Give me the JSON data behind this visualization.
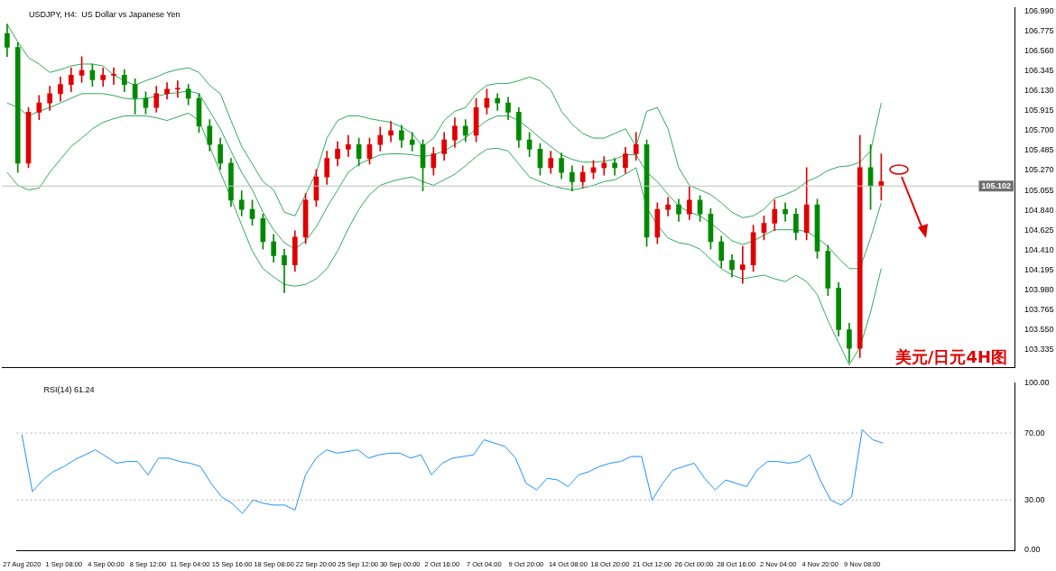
{
  "chart_data": [
    {
      "type": "candlestick",
      "title": "USDJPY, H4:  US Dollar vs Japanese Yen",
      "tick_labels": "y",
      "categories": [
        null,
        null,
        null,
        null,
        null,
        null,
        null,
        null,
        null,
        null,
        null,
        null,
        null,
        null,
        null,
        null,
        null,
        null,
        null,
        null,
        null,
        null,
        null,
        null,
        null,
        null,
        null,
        null,
        null,
        null,
        null,
        null,
        null,
        null,
        null,
        null,
        null,
        null,
        null,
        null,
        null,
        null,
        null,
        null,
        null,
        null,
        null,
        null,
        null,
        null,
        null,
        null,
        null,
        null,
        null,
        null,
        null,
        null,
        null,
        null,
        null,
        null,
        null,
        null,
        null,
        null,
        null,
        null,
        null,
        null,
        null,
        null,
        null,
        null,
        null,
        null,
        null,
        null,
        null,
        null,
        null,
        null,
        null
      ],
      "ohlc": [
        [
          106.75,
          106.85,
          106.5,
          106.6
        ],
        [
          106.6,
          106.65,
          105.25,
          105.35
        ],
        [
          105.35,
          105.95,
          105.3,
          105.9
        ],
        [
          105.9,
          106.08,
          105.82,
          106.0
        ],
        [
          106.0,
          106.18,
          105.92,
          106.1
        ],
        [
          106.1,
          106.28,
          106.02,
          106.2
        ],
        [
          106.2,
          106.38,
          106.12,
          106.3
        ],
        [
          106.3,
          106.5,
          106.22,
          106.35
        ],
        [
          106.35,
          106.42,
          106.18,
          106.25
        ],
        [
          106.25,
          106.38,
          106.18,
          106.3
        ],
        [
          106.3,
          106.38,
          106.2,
          106.3
        ],
        [
          106.3,
          106.36,
          106.12,
          106.2
        ],
        [
          106.2,
          106.26,
          105.88,
          106.05
        ],
        [
          106.05,
          106.12,
          105.88,
          105.95
        ],
        [
          105.95,
          106.18,
          105.9,
          106.1
        ],
        [
          106.1,
          106.22,
          106.04,
          106.15
        ],
        [
          106.15,
          106.24,
          106.06,
          106.15
        ],
        [
          106.15,
          106.2,
          105.98,
          106.05
        ],
        [
          106.05,
          106.1,
          105.68,
          105.75
        ],
        [
          105.75,
          105.82,
          105.48,
          105.55
        ],
        [
          105.55,
          105.62,
          105.28,
          105.35
        ],
        [
          105.35,
          105.4,
          104.88,
          104.95
        ],
        [
          104.95,
          105.05,
          104.78,
          104.85
        ],
        [
          104.85,
          104.95,
          104.68,
          104.75
        ],
        [
          104.75,
          104.8,
          104.42,
          104.5
        ],
        [
          104.5,
          104.58,
          104.28,
          104.35
        ],
        [
          104.35,
          104.42,
          103.95,
          104.25
        ],
        [
          104.25,
          104.62,
          104.18,
          104.55
        ],
        [
          104.55,
          105.02,
          104.48,
          104.95
        ],
        [
          104.95,
          105.28,
          104.88,
          105.2
        ],
        [
          105.2,
          105.48,
          105.12,
          105.4
        ],
        [
          105.4,
          105.58,
          105.32,
          105.5
        ],
        [
          105.5,
          105.65,
          105.42,
          105.55
        ],
        [
          105.55,
          105.62,
          105.32,
          105.4
        ],
        [
          105.4,
          105.62,
          105.34,
          105.55
        ],
        [
          105.55,
          105.74,
          105.48,
          105.65
        ],
        [
          105.65,
          105.8,
          105.58,
          105.7
        ],
        [
          105.7,
          105.76,
          105.52,
          105.6
        ],
        [
          105.6,
          105.68,
          105.48,
          105.55
        ],
        [
          105.55,
          105.6,
          105.05,
          105.3
        ],
        [
          105.3,
          105.52,
          105.22,
          105.45
        ],
        [
          105.45,
          105.68,
          105.38,
          105.6
        ],
        [
          105.6,
          105.84,
          105.52,
          105.75
        ],
        [
          105.75,
          105.82,
          105.58,
          105.65
        ],
        [
          105.65,
          106.05,
          105.58,
          105.95
        ],
        [
          105.95,
          106.15,
          105.88,
          106.05
        ],
        [
          106.05,
          106.1,
          105.92,
          106.0
        ],
        [
          106.0,
          106.06,
          105.82,
          105.9
        ],
        [
          105.9,
          105.95,
          105.52,
          105.6
        ],
        [
          105.6,
          105.68,
          105.42,
          105.5
        ],
        [
          105.5,
          105.56,
          105.22,
          105.3
        ],
        [
          105.3,
          105.48,
          105.24,
          105.4
        ],
        [
          105.4,
          105.46,
          105.18,
          105.25
        ],
        [
          105.25,
          105.32,
          105.05,
          105.15
        ],
        [
          105.15,
          105.32,
          105.08,
          105.25
        ],
        [
          105.25,
          105.38,
          105.18,
          105.3
        ],
        [
          105.3,
          105.42,
          105.22,
          105.35
        ],
        [
          105.35,
          105.4,
          105.22,
          105.3
        ],
        [
          105.3,
          105.52,
          105.24,
          105.45
        ],
        [
          105.45,
          105.68,
          105.38,
          105.55
        ],
        [
          105.55,
          105.6,
          104.45,
          104.55
        ],
        [
          104.55,
          104.92,
          104.48,
          104.85
        ],
        [
          104.85,
          104.98,
          104.78,
          104.9
        ],
        [
          104.9,
          104.96,
          104.72,
          104.8
        ],
        [
          104.8,
          105.1,
          104.74,
          104.95
        ],
        [
          104.95,
          105.0,
          104.72,
          104.8
        ],
        [
          104.8,
          104.86,
          104.42,
          104.5
        ],
        [
          104.5,
          104.56,
          104.22,
          104.3
        ],
        [
          104.3,
          104.36,
          104.12,
          104.2
        ],
        [
          104.2,
          104.45,
          104.05,
          104.25
        ],
        [
          104.25,
          104.68,
          104.18,
          104.6
        ],
        [
          104.6,
          104.78,
          104.52,
          104.7
        ],
        [
          104.7,
          104.95,
          104.62,
          104.85
        ],
        [
          104.85,
          104.92,
          104.72,
          104.8
        ],
        [
          104.8,
          104.86,
          104.52,
          104.6
        ],
        [
          104.6,
          105.3,
          104.52,
          104.9
        ],
        [
          104.9,
          104.96,
          104.32,
          104.4
        ],
        [
          104.4,
          104.46,
          103.92,
          104.0
        ],
        [
          104.0,
          104.06,
          103.48,
          103.55
        ],
        [
          103.55,
          103.62,
          103.2,
          103.35
        ],
        [
          103.35,
          105.65,
          103.25,
          105.3
        ],
        [
          105.3,
          105.55,
          104.85,
          105.1
        ],
        [
          105.1,
          105.45,
          104.95,
          105.15
        ]
      ],
      "colors": [
        "#008a00",
        "#008a00",
        "#e00000",
        "#e00000",
        "#e00000",
        "#e00000",
        "#e00000",
        "#e00000",
        "#008a00",
        "#e00000",
        "#e00000",
        "#008a00",
        "#008a00",
        "#008a00",
        "#e00000",
        "#e00000",
        "#e00000",
        "#008a00",
        "#008a00",
        "#008a00",
        "#008a00",
        "#008a00",
        "#008a00",
        "#008a00",
        "#008a00",
        "#008a00",
        "#008a00",
        "#e00000",
        "#e00000",
        "#e00000",
        "#e00000",
        "#e00000",
        "#e00000",
        "#008a00",
        "#e00000",
        "#e00000",
        "#e00000",
        "#008a00",
        "#008a00",
        "#008a00",
        "#e00000",
        "#e00000",
        "#e00000",
        "#008a00",
        "#e00000",
        "#e00000",
        "#008a00",
        "#008a00",
        "#008a00",
        "#008a00",
        "#008a00",
        "#e00000",
        "#008a00",
        "#008a00",
        "#e00000",
        "#e00000",
        "#e00000",
        "#008a00",
        "#e00000",
        "#e00000",
        "#008a00",
        "#e00000",
        "#e00000",
        "#008a00",
        "#e00000",
        "#008a00",
        "#008a00",
        "#008a00",
        "#008a00",
        "#e00000",
        "#e00000",
        "#e00000",
        "#e00000",
        "#008a00",
        "#008a00",
        "#e00000",
        "#008a00",
        "#008a00",
        "#008a00",
        "#008a00",
        "#e00000",
        "#008a00",
        "#e00000"
      ],
      "series": [
        {
          "type": "line",
          "color": "#2eaa5c",
          "values": [
            106.85,
            106.66,
            106.49,
            106.42,
            106.33,
            106.36,
            106.4,
            106.42,
            106.42,
            106.4,
            106.3,
            106.24,
            106.19,
            106.24,
            106.28,
            106.33,
            106.36,
            106.38,
            106.33,
            106.19,
            106.1,
            105.81,
            105.53,
            105.34,
            105.15,
            105.06,
            104.82,
            104.78,
            105.01,
            105.25,
            105.62,
            105.81,
            105.86,
            105.86,
            105.83,
            105.81,
            105.79,
            105.74,
            105.67,
            105.53,
            105.62,
            105.81,
            105.91,
            105.95,
            106.1,
            106.19,
            106.21,
            106.21,
            106.24,
            106.28,
            106.24,
            106.14,
            105.91,
            105.77,
            105.67,
            105.62,
            105.62,
            105.67,
            105.72,
            105.53,
            105.91,
            105.95,
            105.72,
            105.3,
            105.11,
            105.06,
            105.01,
            104.92,
            104.82,
            104.76,
            104.78,
            104.85,
            104.97,
            105.01,
            105.06,
            105.15,
            105.2,
            105.27,
            105.31,
            105.32,
            105.36,
            105.48,
            106.0
          ]
        },
        {
          "type": "line",
          "color": "#2eaa5c",
          "values": [
            106.0,
            105.95,
            105.86,
            105.91,
            105.95,
            106.0,
            106.05,
            106.1,
            106.1,
            106.1,
            106.08,
            106.05,
            106.04,
            106.05,
            106.07,
            106.1,
            106.11,
            106.13,
            106.1,
            105.91,
            105.72,
            105.48,
            105.25,
            105.06,
            104.82,
            104.63,
            104.49,
            104.42,
            104.51,
            104.66,
            104.87,
            105.06,
            105.25,
            105.34,
            105.39,
            105.44,
            105.45,
            105.45,
            105.44,
            105.42,
            105.44,
            105.48,
            105.55,
            105.62,
            105.72,
            105.81,
            105.86,
            105.86,
            105.81,
            105.72,
            105.62,
            105.53,
            105.44,
            105.39,
            105.36,
            105.36,
            105.37,
            105.39,
            105.44,
            105.44,
            105.25,
            105.15,
            105.01,
            104.89,
            104.82,
            104.78,
            104.7,
            104.61,
            104.51,
            104.47,
            104.51,
            104.57,
            104.63,
            104.63,
            104.63,
            104.61,
            104.54,
            104.45,
            104.32,
            104.21,
            104.21,
            104.54,
            104.92
          ]
        },
        {
          "type": "line",
          "color": "#2eaa5c",
          "values": [
            105.25,
            105.11,
            105.06,
            105.08,
            105.25,
            105.39,
            105.53,
            105.62,
            105.72,
            105.79,
            105.83,
            105.86,
            105.86,
            105.86,
            105.84,
            105.81,
            105.85,
            105.89,
            105.81,
            105.53,
            105.25,
            104.97,
            104.68,
            104.4,
            104.21,
            104.12,
            104.04,
            104.02,
            104.04,
            104.1,
            104.21,
            104.4,
            104.64,
            104.85,
            105.01,
            105.11,
            105.15,
            105.18,
            105.2,
            105.15,
            105.11,
            105.17,
            105.23,
            105.32,
            105.42,
            105.5,
            105.51,
            105.48,
            105.34,
            105.2,
            105.15,
            105.11,
            105.08,
            105.06,
            105.08,
            105.11,
            105.15,
            105.17,
            105.23,
            105.3,
            104.87,
            104.68,
            104.54,
            104.49,
            104.47,
            104.42,
            104.31,
            104.21,
            104.14,
            104.1,
            104.12,
            104.14,
            104.1,
            104.07,
            104.14,
            104.07,
            103.93,
            103.65,
            103.41,
            103.17,
            103.36,
            103.74,
            104.21
          ]
        }
      ],
      "ylim": [
        103.14,
        107.03
      ],
      "yticks": [
        {
          "value": 103.335,
          "label": "103.335"
        },
        {
          "value": 103.55,
          "label": "103.550"
        },
        {
          "value": 103.765,
          "label": "103.765"
        },
        {
          "value": 103.98,
          "label": "103.980"
        },
        {
          "value": 104.195,
          "label": "104.195"
        },
        {
          "value": 104.41,
          "label": "104.410"
        },
        {
          "value": 104.625,
          "label": "104.625"
        },
        {
          "value": 104.84,
          "label": "104.840"
        },
        {
          "value": 105.055,
          "label": "105.055"
        },
        {
          "value": 105.27,
          "label": "105.270"
        },
        {
          "value": 105.485,
          "label": "105.485"
        },
        {
          "value": 105.7,
          "label": "105.700"
        },
        {
          "value": 105.915,
          "label": "105.915"
        },
        {
          "value": 106.13,
          "label": "106.130"
        },
        {
          "value": 106.345,
          "label": "106.345"
        },
        {
          "value": 106.56,
          "label": "106.560"
        },
        {
          "value": 106.775,
          "label": "106.775"
        },
        {
          "value": 106.99,
          "label": "106.990"
        }
      ],
      "ref_lines": [
        {
          "axis": "y",
          "value": 105.102,
          "label": "105.102",
          "color": "#c0c0c0"
        }
      ],
      "annotations": [
        "美元/日元4H图"
      ]
    },
    {
      "type": "line",
      "title": "RSI(14) 61.24",
      "categories": [
        "27 Aug 2020",
        null,
        null,
        null,
        "1 Sep 08:00",
        null,
        null,
        null,
        "4 Sep 00:00",
        null,
        null,
        null,
        "8 Sep 12:00",
        null,
        null,
        null,
        "11 Sep 04:00",
        null,
        null,
        null,
        "15 Sep 16:00",
        null,
        null,
        null,
        "18 Sep 08:00",
        null,
        null,
        null,
        "22 Sep 20:00",
        null,
        null,
        null,
        "25 Sep 12:00",
        null,
        null,
        null,
        "30 Sep 00:00",
        null,
        null,
        null,
        "2 Oct 16:00",
        null,
        null,
        null,
        "7 Oct 04:00",
        null,
        null,
        null,
        "9 Oct 20:00",
        null,
        null,
        null,
        "14 Oct 08:00",
        null,
        null,
        null,
        "18 Oct 20:00",
        null,
        null,
        null,
        "21 Oct 12:00",
        null,
        null,
        null,
        "26 Oct 00:00",
        null,
        null,
        null,
        "28 Oct 16:00",
        null,
        null,
        null,
        "2 Nov 04:00",
        null,
        null,
        null,
        "4 Nov 20:00",
        null,
        null,
        null,
        "9 Nov 08:00",
        null,
        null
      ],
      "series": [
        {
          "color": "#1e90ff",
          "values": [
            69,
            35,
            42,
            47,
            50,
            54,
            57,
            60,
            56,
            52,
            53,
            53,
            45,
            55,
            55,
            53,
            52,
            50,
            40,
            32,
            28,
            22,
            30,
            28,
            27,
            27,
            24,
            45,
            55,
            60,
            58,
            59,
            60,
            55,
            57,
            58,
            58,
            55,
            57,
            45,
            52,
            55,
            56,
            57,
            66,
            64,
            62,
            55,
            40,
            36,
            43,
            42,
            38,
            45,
            47,
            50,
            52,
            53,
            56,
            56,
            30,
            40,
            48,
            50,
            52,
            43,
            36,
            42,
            40,
            38,
            48,
            53,
            53,
            52,
            53,
            57,
            42,
            30,
            27,
            32,
            72,
            66,
            64
          ]
        }
      ],
      "ylim": [
        0,
        100
      ],
      "yticks": [
        {
          "value": 0,
          "label": "0.00"
        },
        {
          "value": 30,
          "label": "30.00"
        },
        {
          "value": 70,
          "label": "70.00"
        },
        {
          "value": 100,
          "label": "100.00"
        }
      ],
      "ref_lines": [
        {
          "axis": "y",
          "value": 30,
          "color": "#b0b0b0",
          "line_style": "dotted"
        },
        {
          "axis": "y",
          "value": 70,
          "color": "#b0b0b0",
          "line_style": "dotted"
        }
      ]
    }
  ]
}
